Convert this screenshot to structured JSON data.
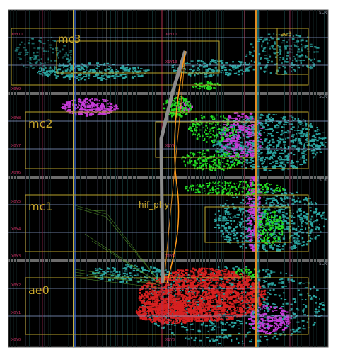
{
  "device_view": {
    "slr_label": "SLR",
    "slr_labels": [
      "SLR",
      "SLR",
      "SLR",
      "SLR"
    ],
    "pblock_labels": {
      "mc3": "mc3",
      "ae3": "ae3",
      "mc2": "mc2",
      "mc1": "mc1",
      "hif_phy": "hif_phy",
      "ae0": "ae0"
    },
    "clock_region_labels": [
      "X0Y11",
      "X1Y11",
      "X1Y10",
      "X0Y9",
      "X0Y8",
      "X0Y7",
      "X1Y7",
      "X0Y6",
      "X0Y5",
      "X0Y4",
      "X0Y3",
      "X1Y3",
      "X0Y2",
      "X0Y1",
      "X0Y0",
      "X1Y0"
    ],
    "colors": {
      "background": "#000000",
      "teal": "#2aa39f",
      "magenta": "#c43ad6",
      "green": "#22dd22",
      "red": "#d62020",
      "grid": "#8aa0d0",
      "pblock_outline": "#b9a22a",
      "label_gold": "#c7a62a",
      "clock_region_label": "#c03060",
      "orange_net": "#ff9a1a",
      "gray_net": "#9a9a9a"
    }
  }
}
